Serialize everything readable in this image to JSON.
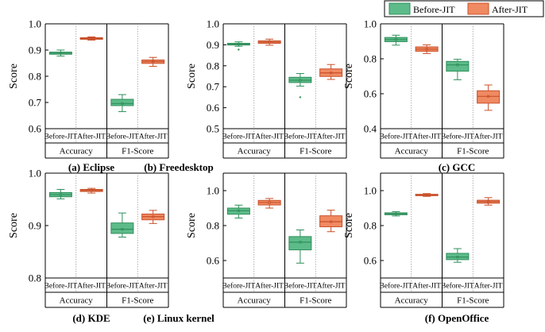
{
  "legend": {
    "position": "top-right",
    "items": [
      {
        "label": "Before-JIT",
        "fill": "#5dbb8a",
        "stroke": "#2f8f5b"
      },
      {
        "label": "After-JIT",
        "fill": "#f08a62",
        "stroke": "#c8502a"
      }
    ]
  },
  "colors": {
    "before_fill": "#5dbb8a",
    "before_stroke": "#2f8f5b",
    "after_fill": "#f08a62",
    "after_stroke": "#c8502a",
    "axis": "#000000",
    "divider": "#9a9a9a"
  },
  "chart_data": [
    {
      "type": "box",
      "title": "(a) Eclipse",
      "ylabel": "Score",
      "ylim": [
        0.6,
        1.0
      ],
      "yticks": [
        "0.6",
        "0.7",
        "0.8",
        "0.9",
        "1.0"
      ],
      "categories": [
        "Before-JIT",
        "After-JIT",
        "Before-JIT",
        "After-JIT"
      ],
      "groups": [
        "Accuracy",
        "F1-Score"
      ],
      "boxes": [
        {
          "series": "Before-JIT",
          "whislo": 0.877,
          "q1": 0.884,
          "med": 0.888,
          "q3": 0.892,
          "whishi": 0.9,
          "fliers": []
        },
        {
          "series": "After-JIT",
          "whislo": 0.938,
          "q1": 0.941,
          "med": 0.944,
          "q3": 0.947,
          "whishi": 0.95,
          "fliers": []
        },
        {
          "series": "Before-JIT",
          "whislo": 0.665,
          "q1": 0.688,
          "med": 0.696,
          "q3": 0.712,
          "whishi": 0.73,
          "fliers": []
        },
        {
          "series": "After-JIT",
          "whislo": 0.838,
          "q1": 0.849,
          "med": 0.856,
          "q3": 0.862,
          "whishi": 0.872,
          "fliers": []
        }
      ]
    },
    {
      "type": "box",
      "title": "(b) Freedesktop",
      "ylabel": "Score",
      "ylim": [
        0.5,
        1.0
      ],
      "yticks": [
        "0.5",
        "0.6",
        "0.7",
        "0.8",
        "0.9",
        "1.0"
      ],
      "categories": [
        "Before-JIT",
        "After-JIT",
        "Before-JIT",
        "After-JIT"
      ],
      "groups": [
        "Accuracy",
        "F1-Score"
      ],
      "boxes": [
        {
          "series": "Before-JIT",
          "whislo": 0.893,
          "q1": 0.899,
          "med": 0.903,
          "q3": 0.907,
          "whishi": 0.914,
          "fliers": [
            0.877
          ]
        },
        {
          "series": "After-JIT",
          "whislo": 0.898,
          "q1": 0.907,
          "med": 0.913,
          "q3": 0.919,
          "whishi": 0.927,
          "fliers": []
        },
        {
          "series": "Before-JIT",
          "whislo": 0.703,
          "q1": 0.72,
          "med": 0.731,
          "q3": 0.745,
          "whishi": 0.763,
          "fliers": [
            0.65
          ]
        },
        {
          "series": "After-JIT",
          "whislo": 0.735,
          "q1": 0.749,
          "med": 0.766,
          "q3": 0.785,
          "whishi": 0.806,
          "fliers": []
        }
      ]
    },
    {
      "type": "box",
      "title": "(c) GCC",
      "ylabel": "Score",
      "ylim": [
        0.4,
        1.0
      ],
      "yticks": [
        "0.4",
        "0.6",
        "0.8",
        "1.0"
      ],
      "categories": [
        "Before-JIT",
        "After-JIT",
        "Before-JIT",
        "After-JIT"
      ],
      "groups": [
        "Accuracy",
        "F1-Score"
      ],
      "boxes": [
        {
          "series": "Before-JIT",
          "whislo": 0.878,
          "q1": 0.898,
          "med": 0.91,
          "q3": 0.922,
          "whishi": 0.935,
          "fliers": []
        },
        {
          "series": "After-JIT",
          "whislo": 0.83,
          "q1": 0.843,
          "med": 0.855,
          "q3": 0.868,
          "whishi": 0.88,
          "fliers": []
        },
        {
          "series": "Before-JIT",
          "whislo": 0.68,
          "q1": 0.729,
          "med": 0.765,
          "q3": 0.785,
          "whishi": 0.797,
          "fliers": []
        },
        {
          "series": "After-JIT",
          "whislo": 0.505,
          "q1": 0.546,
          "med": 0.585,
          "q3": 0.617,
          "whishi": 0.65,
          "fliers": []
        }
      ]
    },
    {
      "type": "box",
      "title": "(d) KDE",
      "ylabel": "Score",
      "ylim": [
        0.8,
        1.0
      ],
      "yticks": [
        "0.8",
        "0.9",
        "1.0"
      ],
      "categories": [
        "Before-JIT",
        "After-JIT",
        "Before-JIT",
        "After-JIT"
      ],
      "groups": [
        "Accuracy",
        "F1-Score"
      ],
      "boxes": [
        {
          "series": "Before-JIT",
          "whislo": 0.951,
          "q1": 0.955,
          "med": 0.959,
          "q3": 0.963,
          "whishi": 0.969,
          "fliers": []
        },
        {
          "series": "After-JIT",
          "whislo": 0.962,
          "q1": 0.965,
          "med": 0.967,
          "q3": 0.969,
          "whishi": 0.971,
          "fliers": []
        },
        {
          "series": "Before-JIT",
          "whislo": 0.878,
          "q1": 0.885,
          "med": 0.893,
          "q3": 0.905,
          "whishi": 0.924,
          "fliers": []
        },
        {
          "series": "After-JIT",
          "whislo": 0.904,
          "q1": 0.911,
          "med": 0.917,
          "q3": 0.922,
          "whishi": 0.929,
          "fliers": []
        }
      ]
    },
    {
      "type": "box",
      "title": "(e) Linux kernel",
      "ylabel": "Score",
      "ylim": [
        0.5,
        1.1
      ],
      "yticks": [
        "0.6",
        "0.8",
        "1.0"
      ],
      "categories": [
        "Before-JIT",
        "After-JIT",
        "Before-JIT",
        "After-JIT"
      ],
      "groups": [
        "Accuracy",
        "F1-Score"
      ],
      "boxes": [
        {
          "series": "Before-JIT",
          "whislo": 0.843,
          "q1": 0.865,
          "med": 0.885,
          "q3": 0.9,
          "whishi": 0.917,
          "fliers": []
        },
        {
          "series": "After-JIT",
          "whislo": 0.9,
          "q1": 0.918,
          "med": 0.932,
          "q3": 0.944,
          "whishi": 0.955,
          "fliers": []
        },
        {
          "series": "Before-JIT",
          "whislo": 0.585,
          "q1": 0.661,
          "med": 0.705,
          "q3": 0.737,
          "whishi": 0.775,
          "fliers": []
        },
        {
          "series": "After-JIT",
          "whislo": 0.765,
          "q1": 0.793,
          "med": 0.822,
          "q3": 0.856,
          "whishi": 0.888,
          "fliers": []
        }
      ]
    },
    {
      "type": "box",
      "title": "(f) OpenOffice",
      "ylabel": "Score",
      "ylim": [
        0.5,
        1.1
      ],
      "yticks": [
        "0.6",
        "0.8",
        "1.0"
      ],
      "categories": [
        "Before-JIT",
        "After-JIT",
        "Before-JIT",
        "After-JIT"
      ],
      "groups": [
        "Accuracy",
        "F1-Score"
      ],
      "boxes": [
        {
          "series": "Before-JIT",
          "whislo": 0.855,
          "q1": 0.862,
          "med": 0.867,
          "q3": 0.873,
          "whishi": 0.88,
          "fliers": []
        },
        {
          "series": "After-JIT",
          "whislo": 0.967,
          "q1": 0.971,
          "med": 0.975,
          "q3": 0.979,
          "whishi": 0.983,
          "fliers": []
        },
        {
          "series": "Before-JIT",
          "whislo": 0.59,
          "q1": 0.605,
          "med": 0.62,
          "q3": 0.641,
          "whishi": 0.668,
          "fliers": []
        },
        {
          "series": "After-JIT",
          "whislo": 0.917,
          "q1": 0.928,
          "med": 0.937,
          "q3": 0.945,
          "whishi": 0.96,
          "fliers": []
        }
      ]
    }
  ]
}
